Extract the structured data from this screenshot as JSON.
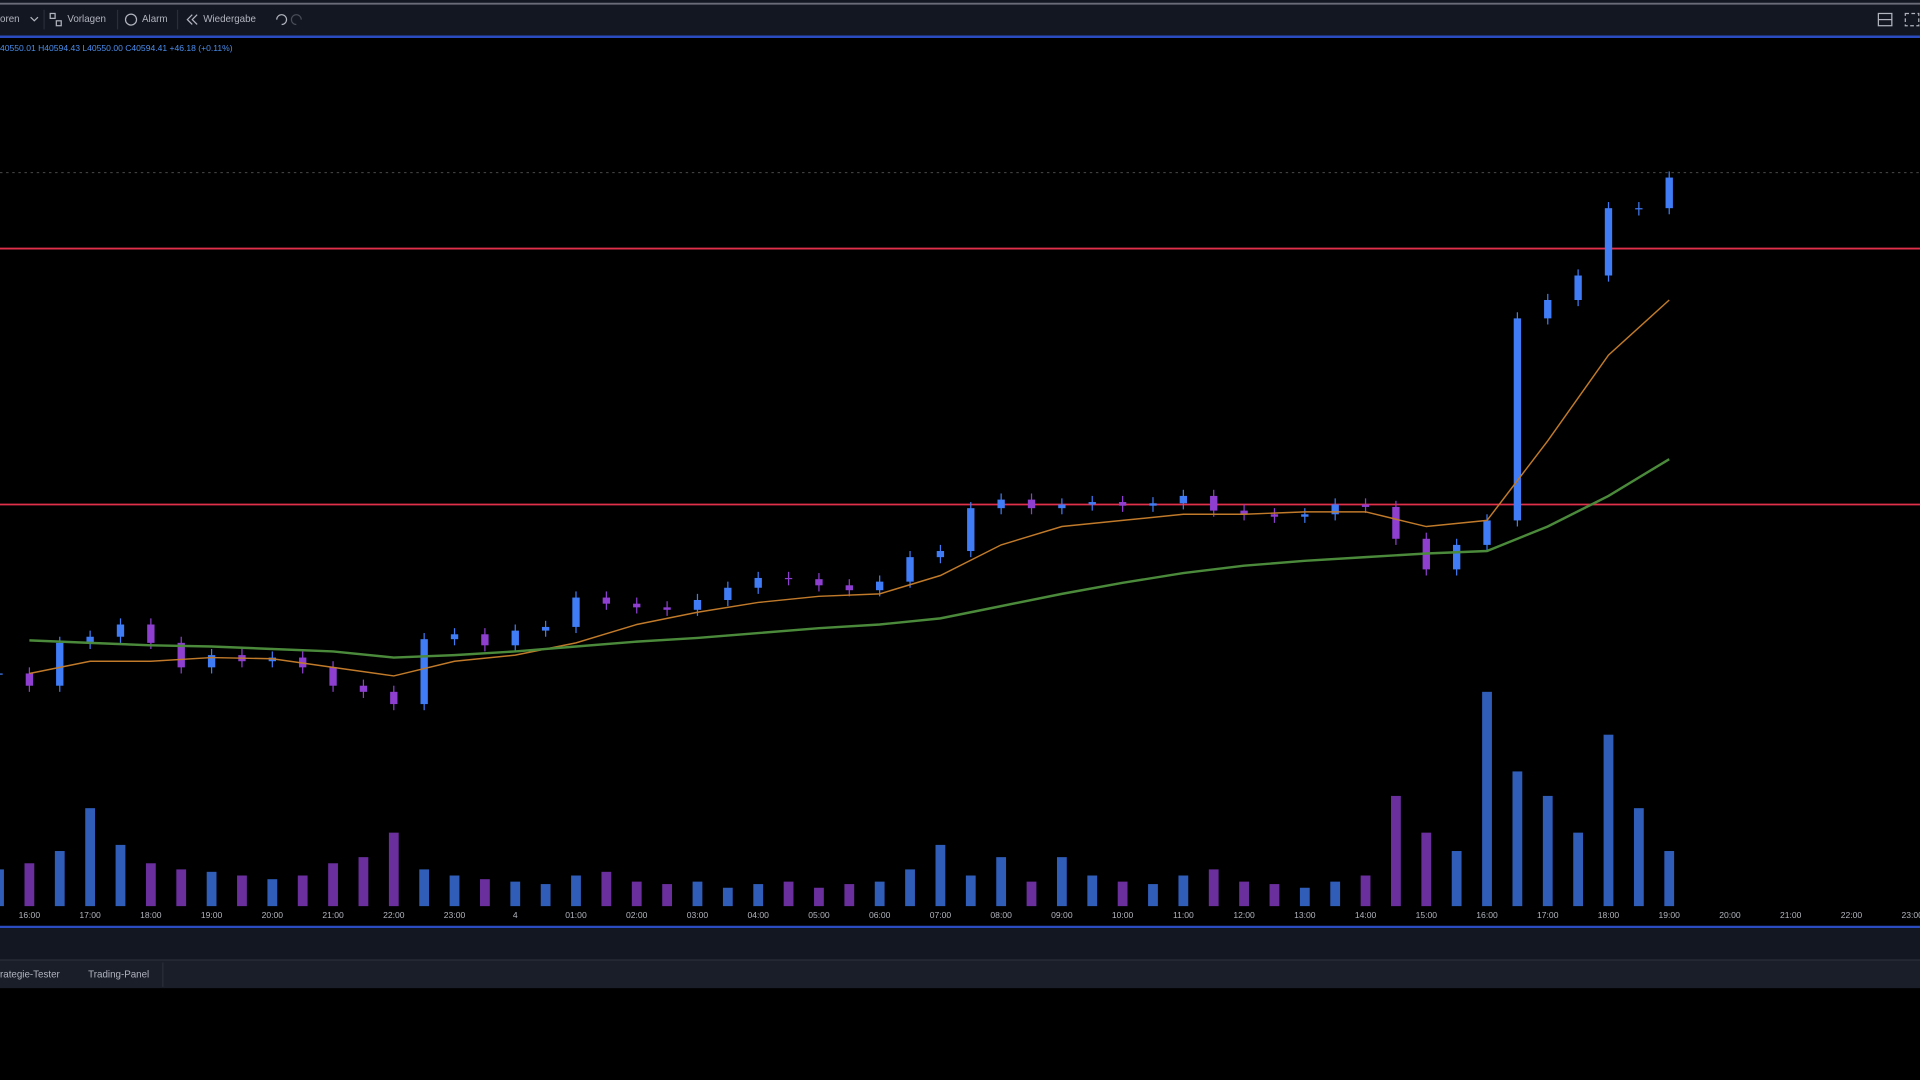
{
  "toolbar": [
    "oren",
    "Vorlagen",
    "Alarm",
    "Wiedergabe"
  ],
  "legend_line": "40550.01 H40594.43 L40550.00 C40594.41 +46.18 (+0.11%)",
  "tabs": [
    "rategie-Tester",
    "Trading-Panel"
  ],
  "chart_data": {
    "type": "candlestick",
    "time_labels": [
      "16:00",
      "17:00",
      "18:00",
      "19:00",
      "20:00",
      "21:00",
      "22:00",
      "23:00",
      "4",
      "01:00",
      "02:00",
      "03:00",
      "04:00",
      "05:00",
      "06:00",
      "07:00",
      "08:00",
      "09:00",
      "10:00",
      "11:00",
      "12:00",
      "13:00",
      "14:00",
      "15:00",
      "16:00",
      "17:00",
      "18:00",
      "19:00",
      "20:00",
      "21:00",
      "22:00",
      "23:00"
    ],
    "ylim": [
      60,
      770
    ],
    "closes": [
      250,
      240,
      275,
      280,
      290,
      275,
      255,
      265,
      260,
      263,
      255,
      240,
      235,
      225,
      278,
      282,
      273,
      285,
      288,
      312,
      307,
      304,
      302,
      310,
      320,
      328,
      327,
      322,
      318,
      325,
      345,
      350,
      385,
      392,
      385,
      388,
      390,
      387,
      389,
      395,
      383,
      380,
      378,
      380,
      388,
      386,
      360,
      335,
      355,
      375,
      540,
      555,
      575,
      630,
      630,
      655
    ],
    "up_color": "#3f7cf5",
    "down_color": "#8e3fd0",
    "volume": [
      30,
      35,
      45,
      80,
      50,
      35,
      30,
      28,
      25,
      22,
      25,
      35,
      40,
      60,
      30,
      25,
      22,
      20,
      18,
      25,
      28,
      20,
      18,
      20,
      15,
      18,
      20,
      15,
      18,
      20,
      30,
      50,
      25,
      40,
      20,
      40,
      25,
      20,
      18,
      25,
      30,
      20,
      18,
      15,
      20,
      25,
      90,
      60,
      45,
      175,
      110,
      90,
      60,
      140,
      80,
      45
    ],
    "volume_ylim": [
      0,
      200
    ],
    "series": [
      {
        "color": "#c07a2a",
        "values": [
          250,
          260,
          260,
          263,
          262,
          255,
          248,
          260,
          265,
          275,
          290,
          300,
          308,
          313,
          315,
          330,
          355,
          370,
          375,
          380,
          380,
          382,
          382,
          370,
          375,
          440,
          510,
          555,
          null,
          null,
          null,
          null
        ]
      },
      {
        "color": "#4a8a3a",
        "values": [
          277,
          275,
          273,
          272,
          270,
          268,
          263,
          265,
          268,
          272,
          276,
          279,
          283,
          287,
          290,
          295,
          305,
          315,
          324,
          332,
          338,
          342,
          345,
          348,
          350,
          370,
          395,
          425,
          null,
          null,
          null,
          null
        ]
      }
    ],
    "levels": [
      597,
      388
    ],
    "level_color": "#e0304a",
    "last_price": 659
  }
}
